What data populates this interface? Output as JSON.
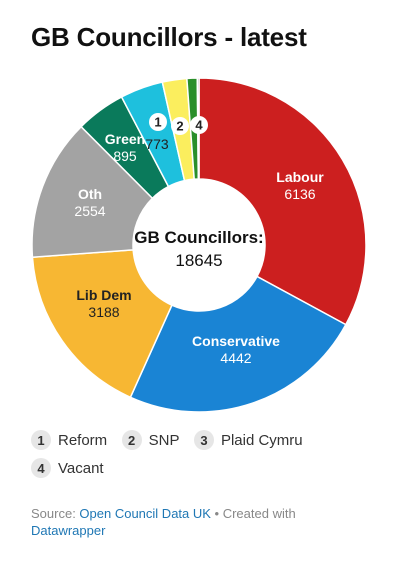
{
  "title": "GB Councillors - latest",
  "chart_data": {
    "type": "pie",
    "style": "donut",
    "total_label": "GB Councillors:",
    "total_value": "18645",
    "slices": [
      {
        "key": "Labour",
        "label": "Labour",
        "value": 6136,
        "color": "#cc1f1f",
        "text_color": "#ffffff",
        "marker": ""
      },
      {
        "key": "Conservative",
        "label": "Conservative",
        "value": 4442,
        "color": "#1a84d4",
        "text_color": "#ffffff",
        "marker": ""
      },
      {
        "key": "LibDem",
        "label": "Lib Dem",
        "value": 3188,
        "color": "#f7b733",
        "text_color": "#222222",
        "marker": ""
      },
      {
        "key": "Oth",
        "label": "Oth",
        "value": 2554,
        "color": "#a3a3a3",
        "text_color": "#ffffff",
        "marker": ""
      },
      {
        "key": "Green",
        "label": "Green",
        "value": 895,
        "color": "#0a7a5b",
        "text_color": "#ffffff",
        "marker": ""
      },
      {
        "key": "Reform",
        "label": "",
        "value": 773,
        "color": "#1ec0dd",
        "text_color": "#222222",
        "marker": "1"
      },
      {
        "key": "SNP",
        "label": "",
        "value": 441,
        "color": "#fbee5e",
        "text_color": "#222222",
        "marker": "2"
      },
      {
        "key": "Plaid",
        "label": "",
        "value": 186,
        "color": "#2a8f2a",
        "text_color": "#222222",
        "marker": ""
      },
      {
        "key": "Vacant",
        "label": "",
        "value": 30,
        "color": "#444444",
        "text_color": "#222222",
        "marker": "4"
      }
    ]
  },
  "legend": [
    {
      "num": "1",
      "label": "Reform"
    },
    {
      "num": "2",
      "label": "SNP"
    },
    {
      "num": "3",
      "label": "Plaid Cymru"
    },
    {
      "num": "4",
      "label": "Vacant"
    }
  ],
  "source": {
    "prefix": "Source: ",
    "link1": "Open Council Data UK",
    "middle": " • Created with",
    "link2": "Datawrapper"
  }
}
